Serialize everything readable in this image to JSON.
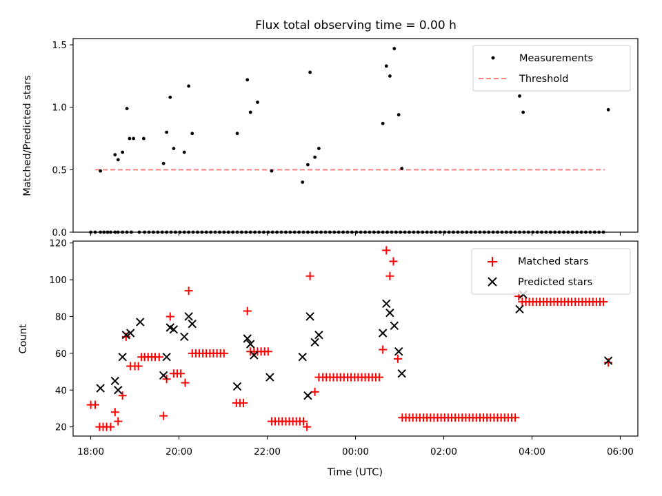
{
  "chart_data": [
    {
      "type": "scatter",
      "title": "Flux total observing time = 0.00 h",
      "xlabel": "",
      "ylabel": "Matched/Predicted stars",
      "xlim": [
        17.6,
        30.4
      ],
      "ylim": [
        0,
        1.55
      ],
      "yticks": [
        0,
        0.5,
        1.0,
        1.5
      ],
      "ytick_labels": [
        "0.0",
        "0.5",
        "1.0",
        "1.5"
      ],
      "legend": [
        "Measurements",
        "Threshold"
      ],
      "legend_position": "top-right",
      "series": [
        {
          "name": "Measurements",
          "x": [
            18.0,
            18.1,
            18.22,
            18.3,
            18.38,
            18.45,
            18.55,
            18.62,
            18.72,
            18.82,
            18.92,
            19.1,
            19.22,
            19.32,
            19.42,
            19.52,
            19.62,
            19.72,
            19.82,
            19.92,
            20.02,
            20.12,
            20.22,
            20.32,
            20.42,
            20.52,
            20.62,
            20.72,
            20.82,
            20.92,
            21.02,
            21.12,
            21.22,
            21.32,
            21.42,
            21.52,
            21.62,
            21.72,
            21.82,
            21.92,
            22.02,
            22.12,
            22.22,
            22.32,
            22.42,
            22.52,
            22.62,
            22.72,
            22.82,
            22.92,
            23.02,
            23.12,
            23.22,
            23.32,
            23.42,
            23.52,
            23.62,
            23.72,
            23.82,
            23.92,
            24.02,
            24.12,
            24.22,
            24.32,
            24.42,
            24.52,
            24.62,
            24.72,
            24.82,
            24.92,
            25.02,
            25.12,
            25.22,
            25.32,
            25.42,
            25.52,
            25.62,
            25.72,
            25.82,
            25.92,
            26.02,
            26.12,
            26.22,
            26.32,
            26.42,
            26.52,
            26.62,
            26.72,
            26.82,
            26.92,
            27.02,
            27.12,
            27.22,
            27.32,
            27.42,
            27.52,
            27.62,
            27.72,
            27.82,
            27.92,
            28.02,
            28.12,
            28.22,
            28.32,
            28.42,
            28.52,
            28.62,
            28.72,
            28.82,
            28.92,
            29.02,
            29.12,
            29.22,
            29.32,
            29.42,
            29.52,
            29.62,
            18.22,
            18.55,
            18.62,
            18.72,
            18.82,
            18.88,
            18.97,
            19.2,
            19.65,
            19.72,
            19.8,
            19.88,
            20.12,
            20.22,
            20.3,
            21.32,
            21.55,
            21.62,
            21.78,
            22.1,
            22.8,
            22.92,
            22.97,
            23.08,
            23.17,
            24.62,
            24.7,
            24.78,
            24.88,
            24.98,
            25.05,
            27.72,
            27.8,
            29.73
          ],
          "y": [
            0,
            0,
            0,
            0,
            0,
            0,
            0,
            0,
            0,
            0,
            0,
            0,
            0,
            0,
            0,
            0,
            0,
            0,
            0,
            0,
            0,
            0,
            0,
            0,
            0,
            0,
            0,
            0,
            0,
            0,
            0,
            0,
            0,
            0,
            0,
            0,
            0,
            0,
            0,
            0,
            0,
            0,
            0,
            0,
            0,
            0,
            0,
            0,
            0,
            0,
            0,
            0,
            0,
            0,
            0,
            0,
            0,
            0,
            0,
            0,
            0,
            0,
            0,
            0,
            0,
            0,
            0,
            0,
            0,
            0,
            0,
            0,
            0,
            0,
            0,
            0,
            0,
            0,
            0,
            0,
            0,
            0,
            0,
            0,
            0,
            0,
            0,
            0,
            0,
            0,
            0,
            0,
            0,
            0,
            0,
            0,
            0,
            0,
            0,
            0,
            0,
            0,
            0,
            0,
            0,
            0,
            0,
            0,
            0,
            0,
            0,
            0,
            0,
            0,
            0,
            0,
            0,
            0.49,
            0.62,
            0.58,
            0.64,
            0.99,
            0.75,
            0.75,
            0.75,
            0.55,
            0.8,
            1.08,
            0.67,
            0.64,
            1.17,
            0.79,
            0.79,
            1.22,
            0.96,
            1.04,
            0.49,
            0.4,
            0.54,
            1.28,
            0.6,
            0.67,
            0.87,
            1.33,
            1.25,
            1.47,
            0.94,
            0.51,
            1.09,
            0.96,
            0.98
          ]
        },
        {
          "name": "Threshold",
          "style": "dashed",
          "color": "#ff7f7f",
          "x": [
            18.1,
            29.65
          ],
          "y": [
            0.5,
            0.5
          ]
        }
      ]
    },
    {
      "type": "scatter",
      "title": "",
      "xlabel": "Time (UTC)",
      "ylabel": "Count",
      "xlim": [
        17.6,
        30.4
      ],
      "ylim": [
        15,
        121
      ],
      "yticks": [
        20,
        40,
        60,
        80,
        100,
        120
      ],
      "ytick_labels": [
        "20",
        "40",
        "60",
        "80",
        "100",
        "120"
      ],
      "xticks": [
        18,
        20,
        22,
        24,
        26,
        28,
        30
      ],
      "xtick_labels": [
        "18:00",
        "20:00",
        "22:00",
        "00:00",
        "02:00",
        "04:00",
        "06:00"
      ],
      "legend": [
        "Matched stars",
        "Predicted stars"
      ],
      "legend_position": "top-right",
      "series": [
        {
          "name": "Matched stars",
          "marker": "+",
          "color": "#ff0000",
          "x": [
            18.0,
            18.1,
            18.2,
            18.28,
            18.36,
            18.45,
            18.55,
            18.62,
            18.72,
            18.8,
            18.9,
            19.0,
            19.08,
            19.15,
            19.22,
            19.3,
            19.38,
            19.46,
            19.55,
            19.65,
            19.72,
            19.8,
            19.88,
            19.96,
            20.04,
            20.14,
            20.22,
            20.3,
            20.38,
            20.46,
            20.54,
            20.62,
            20.7,
            20.78,
            20.86,
            20.94,
            21.02,
            21.3,
            21.38,
            21.46,
            21.55,
            21.62,
            21.7,
            21.78,
            21.86,
            21.94,
            22.02,
            22.1,
            22.18,
            22.26,
            22.34,
            22.42,
            22.5,
            22.58,
            22.66,
            22.74,
            22.82,
            22.9,
            22.97,
            23.08,
            23.17,
            23.26,
            23.34,
            23.42,
            23.5,
            23.58,
            23.66,
            23.74,
            23.82,
            23.9,
            23.98,
            24.06,
            24.14,
            24.22,
            24.3,
            24.38,
            24.46,
            24.54,
            24.62,
            24.7,
            24.78,
            24.86,
            24.96,
            25.06,
            25.14,
            25.22,
            25.3,
            25.38,
            25.46,
            25.54,
            25.62,
            25.7,
            25.78,
            25.86,
            25.94,
            26.02,
            26.1,
            26.18,
            26.26,
            26.34,
            26.42,
            26.5,
            26.58,
            26.66,
            26.74,
            26.82,
            26.9,
            26.98,
            27.06,
            27.14,
            27.22,
            27.3,
            27.38,
            27.46,
            27.54,
            27.62,
            27.7,
            27.78,
            27.86,
            27.94,
            28.02,
            28.1,
            28.18,
            28.26,
            28.34,
            28.42,
            28.5,
            28.58,
            28.66,
            28.74,
            28.82,
            28.9,
            28.98,
            29.06,
            29.14,
            29.22,
            29.3,
            29.38,
            29.46,
            29.54,
            29.62,
            29.73
          ],
          "y": [
            32,
            32,
            20,
            20,
            20,
            20,
            28,
            23,
            37,
            69,
            53,
            53,
            53,
            58,
            58,
            58,
            58,
            58,
            58,
            26,
            46,
            80,
            49,
            49,
            49,
            44,
            94,
            60,
            60,
            60,
            60,
            60,
            60,
            60,
            60,
            60,
            60,
            33,
            33,
            33,
            83,
            61,
            61,
            61,
            61,
            61,
            61,
            23,
            23,
            23,
            23,
            23,
            23,
            23,
            23,
            23,
            23,
            20,
            102,
            39,
            47,
            47,
            47,
            47,
            47,
            47,
            47,
            47,
            47,
            47,
            47,
            47,
            47,
            47,
            47,
            47,
            47,
            47,
            62,
            116,
            102,
            110,
            57,
            25,
            25,
            25,
            25,
            25,
            25,
            25,
            25,
            25,
            25,
            25,
            25,
            25,
            25,
            25,
            25,
            25,
            25,
            25,
            25,
            25,
            25,
            25,
            25,
            25,
            25,
            25,
            25,
            25,
            25,
            25,
            25,
            25,
            91,
            88,
            88,
            88,
            88,
            88,
            88,
            88,
            88,
            88,
            88,
            88,
            88,
            88,
            88,
            88,
            88,
            88,
            88,
            88,
            88,
            88,
            88,
            88,
            88,
            55
          ]
        },
        {
          "name": "Predicted stars",
          "marker": "x",
          "color": "#000000",
          "x": [
            18.22,
            18.55,
            18.62,
            18.72,
            18.8,
            18.9,
            19.12,
            19.65,
            19.72,
            19.8,
            19.88,
            20.12,
            20.22,
            20.3,
            21.32,
            21.55,
            21.62,
            21.7,
            22.06,
            22.8,
            22.92,
            22.97,
            23.08,
            23.17,
            24.62,
            24.7,
            24.78,
            24.88,
            24.98,
            25.05,
            27.72,
            27.8,
            29.73
          ],
          "y": [
            41,
            45,
            40,
            58,
            70,
            71,
            77,
            48,
            58,
            74,
            73,
            69,
            80,
            76,
            42,
            68,
            65,
            59,
            47,
            58,
            37,
            80,
            66,
            70,
            71,
            87,
            82,
            75,
            61,
            49,
            84,
            92,
            56
          ]
        }
      ]
    }
  ]
}
